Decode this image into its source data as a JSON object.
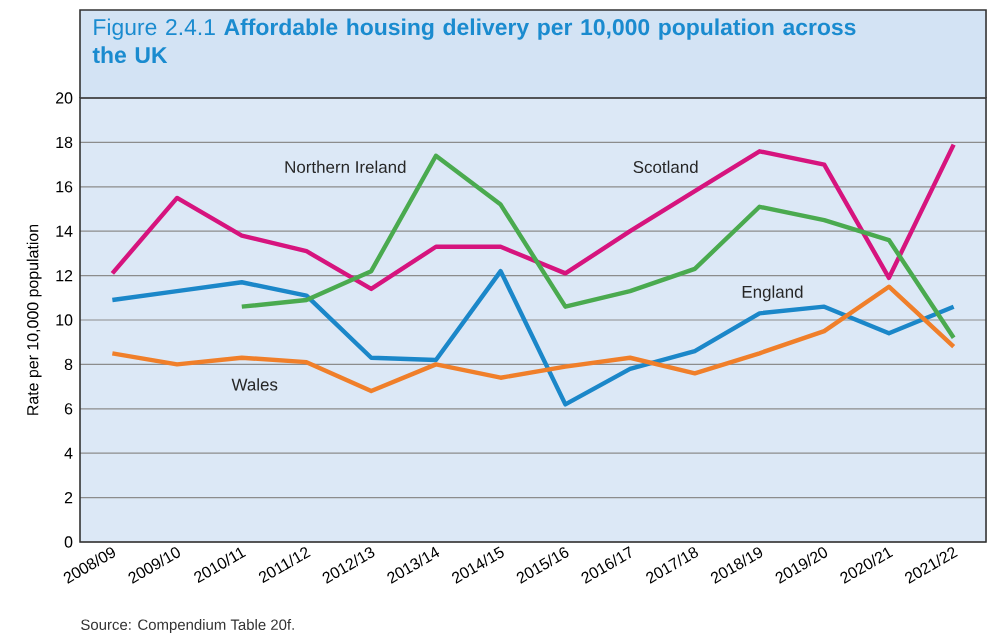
{
  "chart_data": {
    "type": "line",
    "title": "Figure 2.4.1 **Affordable housing delivery per 10,000 population across the UK**",
    "ylabel": "Rate per 10,000 population",
    "categories": [
      "2008/09",
      "2009/10",
      "2010/11",
      "2011/12",
      "2012/13",
      "2013/14",
      "2014/15",
      "2015/16",
      "2016/17",
      "2017/18",
      "2018/19",
      "2019/20",
      "2020/21",
      "2021/22"
    ],
    "series": [
      {
        "name": "Scotland",
        "color": "#d6147e",
        "values": [
          12.1,
          15.5,
          13.8,
          13.1,
          11.4,
          13.3,
          13.3,
          12.1,
          14.0,
          15.8,
          17.6,
          17.0,
          11.9,
          17.9
        ]
      },
      {
        "name": "England",
        "color": "#1b87c9",
        "values": [
          10.9,
          11.3,
          11.7,
          11.1,
          8.3,
          8.2,
          12.2,
          6.2,
          7.8,
          8.6,
          10.3,
          10.6,
          9.4,
          10.6
        ]
      },
      {
        "name": "Wales",
        "color": "#f07f2a",
        "values": [
          8.5,
          8.0,
          8.3,
          8.1,
          6.8,
          8.0,
          7.4,
          7.9,
          8.3,
          7.6,
          8.5,
          9.5,
          11.5,
          8.8
        ]
      },
      {
        "name": "Northern Ireland",
        "color": "#4aaa4f",
        "values": [
          null,
          null,
          10.6,
          10.9,
          12.2,
          17.4,
          15.2,
          10.6,
          11.3,
          12.3,
          15.1,
          14.5,
          13.6,
          9.2
        ]
      }
    ],
    "ylim": [
      0,
      20
    ],
    "yticks": [
      0,
      2,
      4,
      6,
      8,
      10,
      12,
      14,
      16,
      18,
      20
    ],
    "grid": "y",
    "marker": "none",
    "line_style": "solid",
    "annotations": [
      "Source: Compendium Table 20f."
    ]
  }
}
